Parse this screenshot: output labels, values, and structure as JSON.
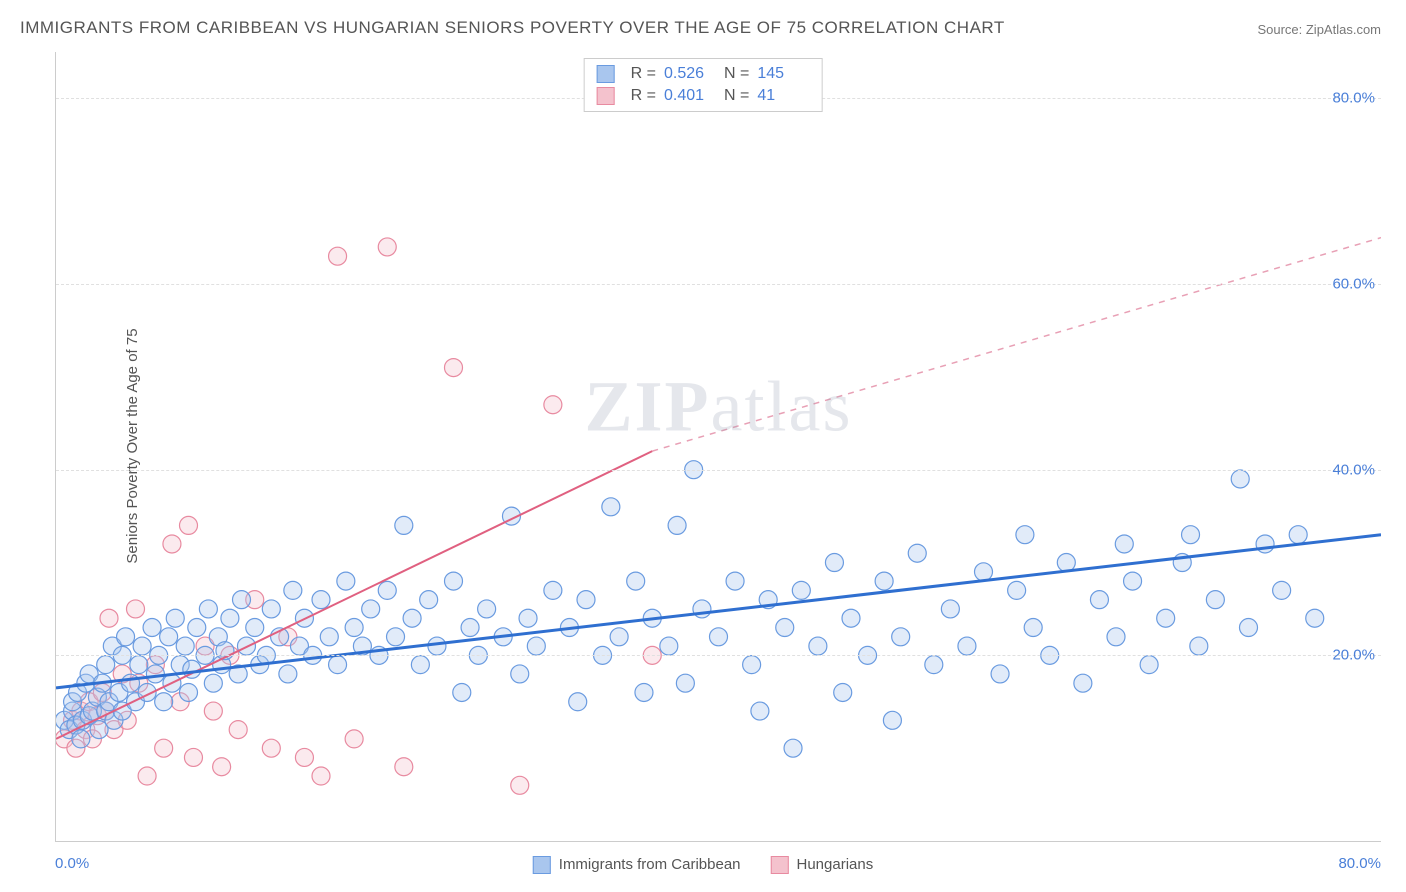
{
  "title": "IMMIGRANTS FROM CARIBBEAN VS HUNGARIAN SENIORS POVERTY OVER THE AGE OF 75 CORRELATION CHART",
  "source": "Source: ZipAtlas.com",
  "ylabel": "Seniors Poverty Over the Age of 75",
  "watermark_a": "ZIP",
  "watermark_b": "atlas",
  "chart": {
    "type": "scatter",
    "xlim": [
      0,
      80
    ],
    "ylim": [
      0,
      85
    ],
    "x_origin_label": "0.0%",
    "x_max_label": "80.0%",
    "yticks": [
      {
        "value": 20,
        "label": "20.0%"
      },
      {
        "value": 40,
        "label": "40.0%"
      },
      {
        "value": 60,
        "label": "60.0%"
      },
      {
        "value": 80,
        "label": "80.0%"
      }
    ],
    "grid_color": "#e0e0e0",
    "background_color": "#ffffff",
    "axis_color": "#cccccc",
    "tick_label_color": "#4a7fd8",
    "marker_radius": 9,
    "marker_stroke_width": 1.2,
    "marker_fill_opacity": 0.35,
    "series": [
      {
        "name": "Immigrants from Caribbean",
        "color_fill": "#a9c6ee",
        "color_stroke": "#6a9be0",
        "R": "0.526",
        "N": "145",
        "trend": {
          "x1": 0,
          "y1": 16.5,
          "x2": 80,
          "y2": 33,
          "dashed": false,
          "color": "#2f6fd0",
          "width": 3
        },
        "points": [
          [
            0.5,
            13
          ],
          [
            0.8,
            12
          ],
          [
            1,
            14
          ],
          [
            1,
            15
          ],
          [
            1.2,
            12.5
          ],
          [
            1.3,
            16
          ],
          [
            1.5,
            11
          ],
          [
            1.6,
            13
          ],
          [
            1.8,
            17
          ],
          [
            2,
            13.5
          ],
          [
            2,
            18
          ],
          [
            2.2,
            14
          ],
          [
            2.5,
            15.5
          ],
          [
            2.6,
            12
          ],
          [
            2.8,
            17
          ],
          [
            3,
            14
          ],
          [
            3,
            19
          ],
          [
            3.2,
            15
          ],
          [
            3.4,
            21
          ],
          [
            3.5,
            13
          ],
          [
            3.8,
            16
          ],
          [
            4,
            20
          ],
          [
            4,
            14
          ],
          [
            4.2,
            22
          ],
          [
            4.5,
            17
          ],
          [
            4.8,
            15
          ],
          [
            5,
            19
          ],
          [
            5.2,
            21
          ],
          [
            5.5,
            16
          ],
          [
            5.8,
            23
          ],
          [
            6,
            18
          ],
          [
            6.2,
            20
          ],
          [
            6.5,
            15
          ],
          [
            6.8,
            22
          ],
          [
            7,
            17
          ],
          [
            7.2,
            24
          ],
          [
            7.5,
            19
          ],
          [
            7.8,
            21
          ],
          [
            8,
            16
          ],
          [
            8.2,
            18.5
          ],
          [
            8.5,
            23
          ],
          [
            9,
            20
          ],
          [
            9.2,
            25
          ],
          [
            9.5,
            17
          ],
          [
            9.8,
            22
          ],
          [
            10,
            19
          ],
          [
            10.2,
            20.5
          ],
          [
            10.5,
            24
          ],
          [
            11,
            18
          ],
          [
            11.2,
            26
          ],
          [
            11.5,
            21
          ],
          [
            12,
            23
          ],
          [
            12.3,
            19
          ],
          [
            12.7,
            20
          ],
          [
            13,
            25
          ],
          [
            13.5,
            22
          ],
          [
            14,
            18
          ],
          [
            14.3,
            27
          ],
          [
            14.7,
            21
          ],
          [
            15,
            24
          ],
          [
            15.5,
            20
          ],
          [
            16,
            26
          ],
          [
            16.5,
            22
          ],
          [
            17,
            19
          ],
          [
            17.5,
            28
          ],
          [
            18,
            23
          ],
          [
            18.5,
            21
          ],
          [
            19,
            25
          ],
          [
            19.5,
            20
          ],
          [
            20,
            27
          ],
          [
            20.5,
            22
          ],
          [
            21,
            34
          ],
          [
            21.5,
            24
          ],
          [
            22,
            19
          ],
          [
            22.5,
            26
          ],
          [
            23,
            21
          ],
          [
            24,
            28
          ],
          [
            24.5,
            16
          ],
          [
            25,
            23
          ],
          [
            25.5,
            20
          ],
          [
            26,
            25
          ],
          [
            27,
            22
          ],
          [
            27.5,
            35
          ],
          [
            28,
            18
          ],
          [
            28.5,
            24
          ],
          [
            29,
            21
          ],
          [
            30,
            27
          ],
          [
            31,
            23
          ],
          [
            31.5,
            15
          ],
          [
            32,
            26
          ],
          [
            33,
            20
          ],
          [
            33.5,
            36
          ],
          [
            34,
            22
          ],
          [
            35,
            28
          ],
          [
            35.5,
            16
          ],
          [
            36,
            24
          ],
          [
            37,
            21
          ],
          [
            37.5,
            34
          ],
          [
            38,
            17
          ],
          [
            38.5,
            40
          ],
          [
            39,
            25
          ],
          [
            40,
            22
          ],
          [
            41,
            28
          ],
          [
            42,
            19
          ],
          [
            42.5,
            14
          ],
          [
            43,
            26
          ],
          [
            44,
            23
          ],
          [
            44.5,
            10
          ],
          [
            45,
            27
          ],
          [
            46,
            21
          ],
          [
            47,
            30
          ],
          [
            47.5,
            16
          ],
          [
            48,
            24
          ],
          [
            49,
            20
          ],
          [
            50,
            28
          ],
          [
            50.5,
            13
          ],
          [
            51,
            22
          ],
          [
            52,
            31
          ],
          [
            53,
            19
          ],
          [
            54,
            25
          ],
          [
            55,
            21
          ],
          [
            56,
            29
          ],
          [
            57,
            18
          ],
          [
            58,
            27
          ],
          [
            58.5,
            33
          ],
          [
            59,
            23
          ],
          [
            60,
            20
          ],
          [
            61,
            30
          ],
          [
            62,
            17
          ],
          [
            63,
            26
          ],
          [
            64,
            22
          ],
          [
            64.5,
            32
          ],
          [
            65,
            28
          ],
          [
            66,
            19
          ],
          [
            67,
            24
          ],
          [
            68,
            30
          ],
          [
            68.5,
            33
          ],
          [
            69,
            21
          ],
          [
            70,
            26
          ],
          [
            71.5,
            39
          ],
          [
            72,
            23
          ],
          [
            73,
            32
          ],
          [
            74,
            27
          ],
          [
            75,
            33
          ],
          [
            76,
            24
          ]
        ]
      },
      {
        "name": "Hungarians",
        "color_fill": "#f4c2cd",
        "color_stroke": "#e88aa0",
        "R": "0.401",
        "N": "41",
        "trend": {
          "x1": 0,
          "y1": 11,
          "x2": 36,
          "y2": 42,
          "dashed": false,
          "color": "#e06080",
          "width": 2
        },
        "trend_ext": {
          "x1": 36,
          "y1": 42,
          "x2": 80,
          "y2": 65,
          "dashed": true,
          "color": "#e8a0b5",
          "width": 1.5
        },
        "points": [
          [
            0.5,
            11
          ],
          [
            1,
            13
          ],
          [
            1.2,
            10
          ],
          [
            1.5,
            14
          ],
          [
            1.8,
            12
          ],
          [
            2,
            15
          ],
          [
            2.2,
            11
          ],
          [
            2.5,
            13.5
          ],
          [
            2.8,
            16
          ],
          [
            3,
            14
          ],
          [
            3.2,
            24
          ],
          [
            3.5,
            12
          ],
          [
            4,
            18
          ],
          [
            4.3,
            13
          ],
          [
            4.8,
            25
          ],
          [
            5,
            17
          ],
          [
            5.5,
            7
          ],
          [
            6,
            19
          ],
          [
            6.5,
            10
          ],
          [
            7,
            32
          ],
          [
            7.5,
            15
          ],
          [
            8,
            34
          ],
          [
            8.3,
            9
          ],
          [
            9,
            21
          ],
          [
            9.5,
            14
          ],
          [
            10,
            8
          ],
          [
            10.5,
            20
          ],
          [
            11,
            12
          ],
          [
            12,
            26
          ],
          [
            13,
            10
          ],
          [
            14,
            22
          ],
          [
            15,
            9
          ],
          [
            16,
            7
          ],
          [
            17,
            63
          ],
          [
            18,
            11
          ],
          [
            20,
            64
          ],
          [
            21,
            8
          ],
          [
            24,
            51
          ],
          [
            28,
            6
          ],
          [
            30,
            47
          ],
          [
            36,
            20
          ]
        ]
      }
    ]
  },
  "bottom_legend": [
    {
      "label": "Immigrants from Caribbean",
      "fill": "#a9c6ee",
      "stroke": "#6a9be0"
    },
    {
      "label": "Hungarians",
      "fill": "#f4c2cd",
      "stroke": "#e88aa0"
    }
  ]
}
